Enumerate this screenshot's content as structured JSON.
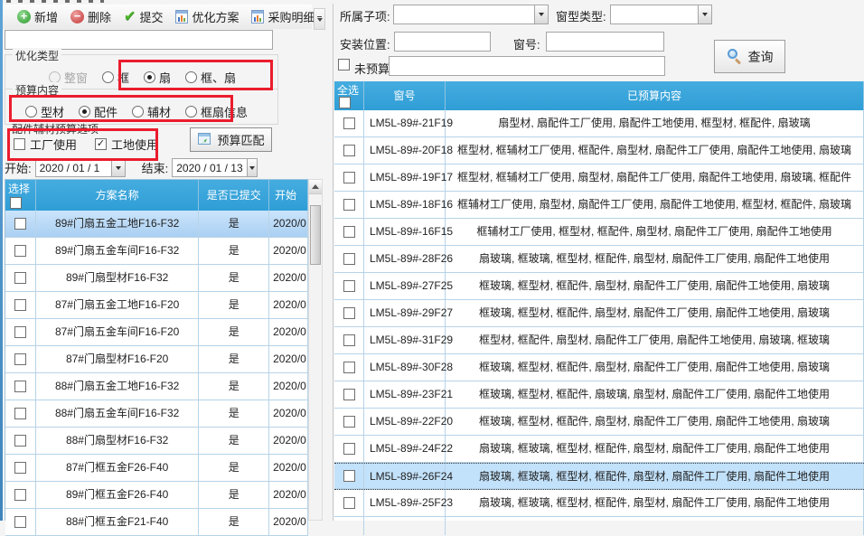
{
  "app": {
    "accent_color": "#35A3DB",
    "annotation_color": "#EA1C2D"
  },
  "toolbar": {
    "buttons": [
      {
        "label": "新增",
        "icon": "add-circle"
      },
      {
        "label": "删除",
        "icon": "remove-circle"
      },
      {
        "label": "提交",
        "icon": "green-check"
      },
      {
        "label": "优化方案",
        "icon": "report"
      },
      {
        "label": "采购明细",
        "icon": "report",
        "has_dropdown": true
      }
    ]
  },
  "left": {
    "filter_input_value": "",
    "optimize_type": {
      "label": "优化类型",
      "options": [
        {
          "label": "整窗",
          "state": "disabled"
        },
        {
          "label": "框",
          "state": "off"
        },
        {
          "label": "扇",
          "state": "on"
        },
        {
          "label": "框、扇",
          "state": "off"
        }
      ]
    },
    "budget_content": {
      "label": "预算内容",
      "options": [
        {
          "label": "型材",
          "state": "off"
        },
        {
          "label": "配件",
          "state": "on"
        },
        {
          "label": "辅材",
          "state": "off"
        },
        {
          "label": "框扇信息",
          "state": "off"
        }
      ]
    },
    "usage_options": {
      "label": "配件辅材预算选项",
      "checkboxes": [
        {
          "label": "工厂使用",
          "checked": false
        },
        {
          "label": "工地使用",
          "checked": true
        }
      ]
    },
    "match_button_label": "预算匹配",
    "date_start_label": "开始:",
    "date_start_value": "2020 / 01 / 1",
    "date_end_label": "结束:",
    "date_end_value": "2020 / 01 / 13",
    "plan_table": {
      "select_header": "选择",
      "name_header": "方案名称",
      "submitted_header": "是否已提交",
      "start_header": "开始",
      "rows": [
        {
          "name": "89#门扇五金工地F16-F32",
          "submitted": "是",
          "start": "2020/0",
          "selected": true
        },
        {
          "name": "89#门扇五金车间F16-F32",
          "submitted": "是",
          "start": "2020/0",
          "selected": false
        },
        {
          "name": "89#门扇型材F16-F32",
          "submitted": "是",
          "start": "2020/0",
          "selected": false
        },
        {
          "name": "87#门扇五金工地F16-F20",
          "submitted": "是",
          "start": "2020/0",
          "selected": false
        },
        {
          "name": "87#门扇五金车间F16-F20",
          "submitted": "是",
          "start": "2020/0",
          "selected": false
        },
        {
          "name": "87#门扇型材F16-F20",
          "submitted": "是",
          "start": "2020/0",
          "selected": false
        },
        {
          "name": "88#门扇五金工地F16-F32",
          "submitted": "是",
          "start": "2020/0",
          "selected": false
        },
        {
          "name": "88#门扇五金车间F16-F32",
          "submitted": "是",
          "start": "2020/0",
          "selected": false
        },
        {
          "name": "88#门扇型材F16-F32",
          "submitted": "是",
          "start": "2020/0",
          "selected": false
        },
        {
          "name": "87#门框五金F26-F40",
          "submitted": "是",
          "start": "2020/0",
          "selected": false
        },
        {
          "name": "89#门框五金F26-F40",
          "submitted": "是",
          "start": "2020/0",
          "selected": false
        },
        {
          "name": "88#门框五金F21-F40",
          "submitted": "是",
          "start": "2020/0",
          "selected": false
        }
      ]
    }
  },
  "right": {
    "filters": {
      "sub_item_label": "所属子项:",
      "sub_item_value": "",
      "window_type_label": "窗型类型:",
      "window_type_value": "",
      "install_pos_label": "安装位置:",
      "install_pos_value": "",
      "window_no_label": "窗号:",
      "window_no_value": "",
      "no_budget_label": "未预算:",
      "no_budget_checked": false,
      "no_budget_value": "",
      "query_button_label": "查询"
    },
    "budget_table": {
      "select_header": "全选",
      "window_header": "窗号",
      "content_header": "已预算内容",
      "rows": [
        {
          "win": "LM5L-89#-21F19",
          "content": "扇型材, 扇配件工厂使用, 扇配件工地使用, 框型材, 框配件, 扇玻璃",
          "selected": false
        },
        {
          "win": "LM5L-89#-20F18",
          "content": "框型材, 框辅材工厂使用, 框配件, 扇型材, 扇配件工厂使用, 扇配件工地使用, 扇玻璃",
          "selected": false
        },
        {
          "win": "LM5L-89#-19F17",
          "content": "框型材, 框辅材工厂使用, 扇型材, 扇配件工厂使用, 扇配件工地使用, 扇玻璃, 框配件",
          "selected": false
        },
        {
          "win": "LM5L-89#-18F16",
          "content": "框辅材工厂使用, 扇型材, 扇配件工厂使用, 扇配件工地使用, 框型材, 框配件, 扇玻璃",
          "selected": false
        },
        {
          "win": "LM5L-89#-16F15",
          "content": "框辅材工厂使用, 框型材, 框配件, 扇型材, 扇配件工厂使用, 扇配件工地使用",
          "selected": false
        },
        {
          "win": "LM5L-89#-28F26",
          "content": "扇玻璃, 框玻璃, 框型材, 框配件, 扇型材, 扇配件工厂使用, 扇配件工地使用",
          "selected": false
        },
        {
          "win": "LM5L-89#-27F25",
          "content": "框玻璃, 框型材, 框配件, 扇型材, 扇配件工厂使用, 扇配件工地使用, 扇玻璃",
          "selected": false
        },
        {
          "win": "LM5L-89#-29F27",
          "content": "框玻璃, 框型材, 框配件, 扇型材, 扇配件工厂使用, 扇配件工地使用, 扇玻璃",
          "selected": false
        },
        {
          "win": "LM5L-89#-31F29",
          "content": "框型材, 框配件, 扇型材, 扇配件工厂使用, 扇配件工地使用, 扇玻璃, 框玻璃",
          "selected": false
        },
        {
          "win": "LM5L-89#-30F28",
          "content": "框玻璃, 框型材, 框配件, 扇型材, 扇配件工厂使用, 扇配件工地使用, 扇玻璃",
          "selected": false
        },
        {
          "win": "LM5L-89#-23F21",
          "content": "框玻璃, 框型材, 框配件, 扇玻璃, 扇型材, 扇配件工厂使用, 扇配件工地使用",
          "selected": false
        },
        {
          "win": "LM5L-89#-22F20",
          "content": "框玻璃, 框型材, 框配件, 扇型材, 扇配件工厂使用, 扇配件工地使用, 扇玻璃",
          "selected": false
        },
        {
          "win": "LM5L-89#-24F22",
          "content": "扇玻璃, 框玻璃, 框型材, 框配件, 扇型材, 扇配件工厂使用, 扇配件工地使用",
          "selected": false
        },
        {
          "win": "LM5L-89#-26F24",
          "content": "扇玻璃, 框玻璃, 框型材, 框配件, 扇型材, 扇配件工厂使用, 扇配件工地使用",
          "selected": true
        },
        {
          "win": "LM5L-89#-25F23",
          "content": "扇玻璃, 框玻璃, 框型材, 框配件, 扇型材, 扇配件工厂使用, 扇配件工地使用",
          "selected": false
        }
      ]
    }
  }
}
